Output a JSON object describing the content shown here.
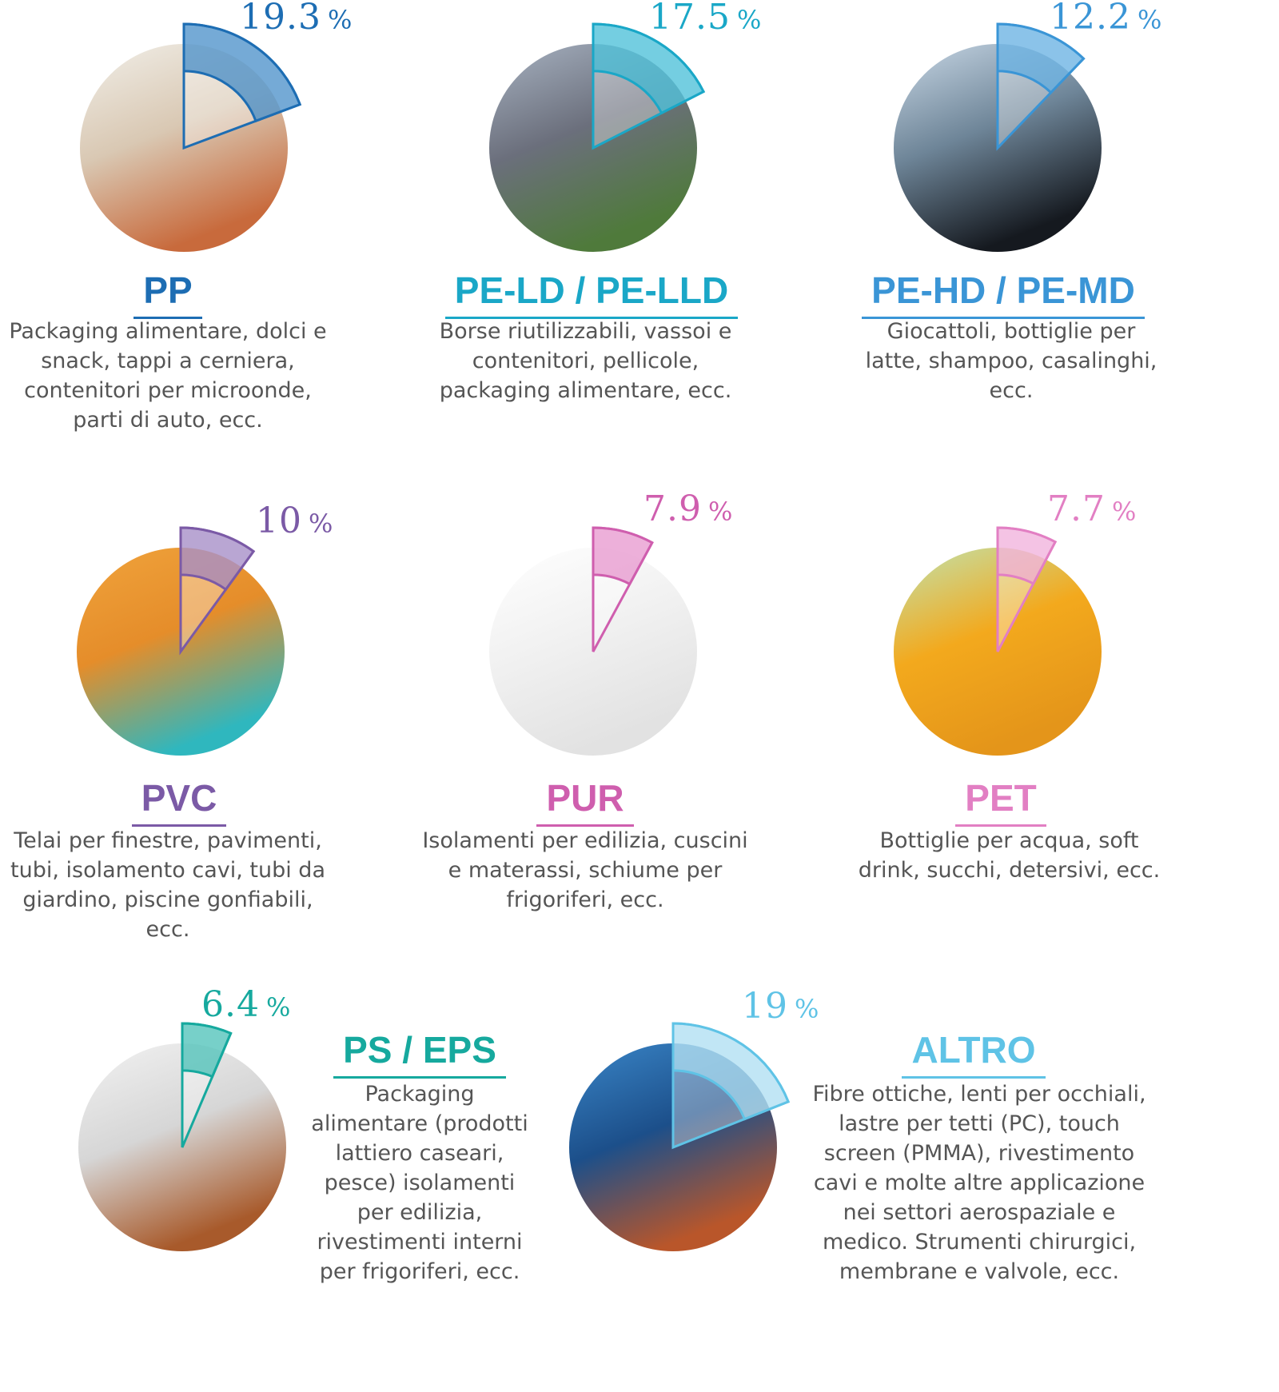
{
  "chart_data": {
    "type": "pie",
    "unit": "%",
    "categories": [
      "PP",
      "PE-LD / PE-LLD",
      "PE-HD / PE-MD",
      "PVC",
      "PUR",
      "PET",
      "PS / EPS",
      "ALTRO"
    ],
    "values": [
      19.3,
      17.5,
      12.2,
      10,
      7.9,
      7.7,
      6.4,
      19
    ],
    "items": [
      {
        "name": "PP",
        "value": 19.3,
        "value_text": "19.3",
        "color": "#1d6db3",
        "fill": "#3a86c4",
        "photo": "microwave-food-photo",
        "image_bg": [
          "#f1efe9",
          "#d9c8b3",
          "#c86a3c"
        ],
        "description": "Packaging alimentare, dolci e snack, tappi a cerniera, contenitori per microonde, parti di auto, ecc."
      },
      {
        "name": "PE-LD / PE-LLD",
        "value": 17.5,
        "value_text": "17.5",
        "color": "#1aa7c7",
        "fill": "#39b9d4",
        "photo": "agricultural-film-photo",
        "image_bg": [
          "#a8b3c2",
          "#6b6f7c",
          "#4f7a3b"
        ],
        "description": "Borse riutilizzabili, vassoi e contenitori, pellicole, packaging alimentare, ecc."
      },
      {
        "name": "PE-HD / PE-MD",
        "value": 12.2,
        "value_text": "12.2",
        "color": "#3a95d6",
        "fill": "#5aaae0",
        "photo": "pipes-photo",
        "image_bg": [
          "#c9d8e6",
          "#6e8598",
          "#15191f"
        ],
        "description": "Giocattoli, bottiglie per latte, shampoo, casalinghi, ecc."
      },
      {
        "name": "PVC",
        "value": 10,
        "value_text": "10",
        "color": "#7b5aa6",
        "fill": "#9b80c0",
        "photo": "sports-floor-photo",
        "image_bg": [
          "#f0a33c",
          "#e58d2a",
          "#2fb7be"
        ],
        "description": "Telai per finestre, pavimenti, tubi, isolamento cavi, tubi da giardino, piscine gonfiabili, ecc."
      },
      {
        "name": "PUR",
        "value": 7.9,
        "value_text": "7.9",
        "color": "#cf5eae",
        "fill": "#e58fcb",
        "photo": "mattress-photo",
        "image_bg": [
          "#ffffff",
          "#f1f1f1",
          "#e2e2e2"
        ],
        "description": "Isolamenti per edilizia, cuscini e materassi, schiume per frigoriferi, ecc."
      },
      {
        "name": "PET",
        "value": 7.7,
        "value_text": "7.7",
        "color": "#e27fc3",
        "fill": "#f0a9d8",
        "photo": "bottles-photo",
        "image_bg": [
          "#bfe3b0",
          "#f3a91d",
          "#e4951a"
        ],
        "description": "Bottiglie per acqua, soft drink, succhi, detersivi, ecc."
      },
      {
        "name": "PS / EPS",
        "value": 6.4,
        "value_text": "6.4",
        "color": "#16a99e",
        "fill": "#3dbcb2",
        "photo": "insulation-panel-photo",
        "image_bg": [
          "#f2f2f2",
          "#d6d6d6",
          "#a85a2b"
        ],
        "description": "Packaging alimentare (prodotti lattiero caseari, pesce) isolamenti per edilizia, rivestimenti interni per frigoriferi, ecc."
      },
      {
        "name": "ALTRO",
        "value": 19,
        "value_text": "19",
        "color": "#5fc3e6",
        "fill": "#a7dcf1",
        "photo": "optical-fibres-photo",
        "image_bg": [
          "#3a86c8",
          "#1c4f8a",
          "#b9562a"
        ],
        "description": "Fibre ottiche, lenti per occhiali, lastre per tetti (PC), touch screen (PMMA), rivestimento cavi e molte altre applicazione nei  settori aerospaziale e medico. Strumenti chirurgici, membrane e valvole, ecc."
      }
    ]
  }
}
